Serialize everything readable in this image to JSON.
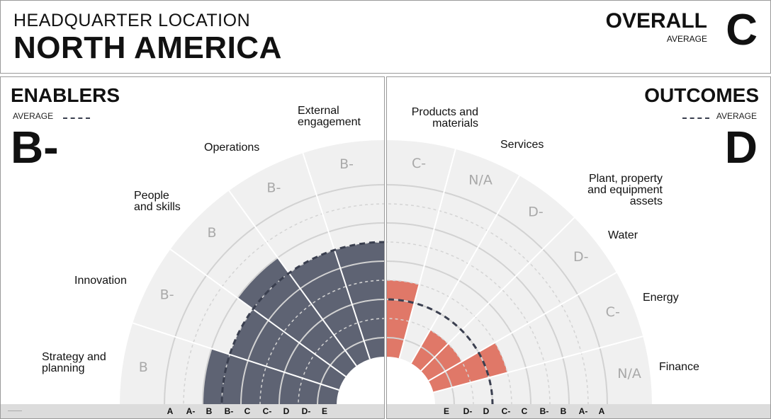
{
  "header": {
    "hq_label": "HEADQUARTER LOCATION",
    "region": "NORTH AMERICA",
    "overall_label": "OVERALL",
    "overall_sub": "AVERAGE",
    "overall_grade": "C"
  },
  "enablers": {
    "title": "ENABLERS",
    "average_label": "AVERAGE",
    "average_grade": "B-",
    "categories": [
      "Strategy and\nplanning",
      "Innovation",
      "People\nand skills",
      "Operations",
      "External\nengagement"
    ],
    "ticks": [
      "A",
      "A-",
      "B",
      "B-",
      "C",
      "C-",
      "D",
      "D-",
      "E"
    ]
  },
  "outcomes": {
    "title": "OUTCOMES",
    "average_label": "AVERAGE",
    "average_grade": "D",
    "categories": [
      "Products and\nmaterials",
      "Services",
      "Plant, property\nand equipment\nassets",
      "Water",
      "Energy",
      "Finance"
    ],
    "ticks": [
      "E",
      "D-",
      "D",
      "C-",
      "C",
      "B-",
      "B",
      "A-",
      "A"
    ]
  },
  "chart_data": [
    {
      "type": "polar-bar",
      "title": "ENABLERS",
      "scale": [
        "E",
        "D-",
        "D",
        "C-",
        "C",
        "B-",
        "B",
        "A-",
        "A"
      ],
      "categories": [
        "Strategy and planning",
        "Innovation",
        "People and skills",
        "Operations",
        "External engagement"
      ],
      "grades": [
        "B",
        "B-",
        "B",
        "B-",
        "B-"
      ],
      "average": "B-",
      "bar_color": "#5e6373"
    },
    {
      "type": "polar-bar",
      "title": "OUTCOMES",
      "scale": [
        "E",
        "D-",
        "D",
        "C-",
        "C",
        "B-",
        "B",
        "A-",
        "A"
      ],
      "categories": [
        "Products and materials",
        "Services",
        "Plant, property and equipment assets",
        "Water",
        "Energy",
        "Finance"
      ],
      "grades": [
        "C-",
        "N/A",
        "D-",
        "D-",
        "C-",
        "N/A"
      ],
      "average": "D",
      "bar_color": "#e07868"
    }
  ]
}
